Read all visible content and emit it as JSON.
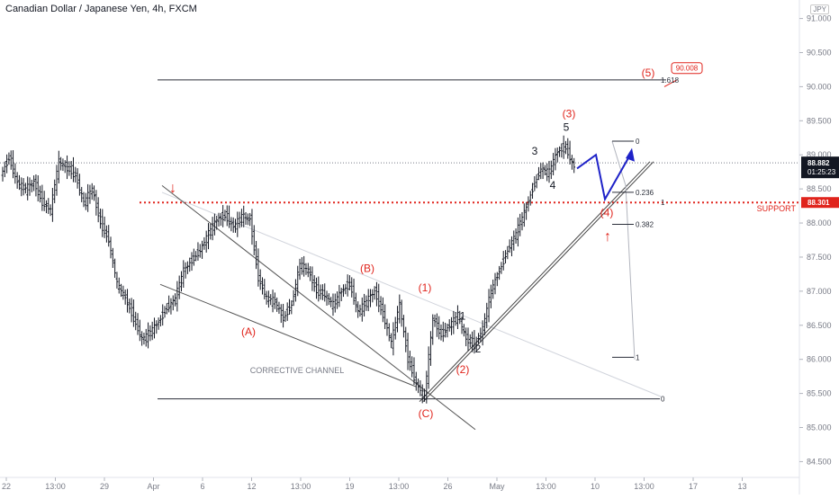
{
  "chart_data": {
    "type": "candlestick",
    "title": "Canadian Dollar / Japanese Yen, 4h, FXCM",
    "currency": "JPY",
    "ylim": [
      84.4,
      91.1
    ],
    "y_ticks": [
      "91.000",
      "90.500",
      "90.000",
      "89.500",
      "89.000",
      "88.500",
      "88.000",
      "87.500",
      "87.000",
      "86.500",
      "86.000",
      "85.500",
      "85.000",
      "84.500"
    ],
    "x_ticks": [
      "22",
      "13:00",
      "29",
      "Apr",
      "6",
      "12",
      "13:00",
      "19",
      "13:00",
      "26",
      "May",
      "13:00",
      "10",
      "13:00",
      "17",
      "13"
    ],
    "last_price": {
      "value": "88.882",
      "timer": "01:25:23",
      "color": "#131722"
    },
    "support": {
      "value": "88.301",
      "label": "SUPPORT",
      "color": "#e0241c"
    },
    "target": {
      "value": "90.008",
      "color": "#e0241c"
    },
    "ohlc_path": [
      88.7,
      88.95,
      88.6,
      88.5,
      88.6,
      88.3,
      88.2,
      88.9,
      88.8,
      88.7,
      88.3,
      88.5,
      88.0,
      87.75,
      87.1,
      86.9,
      86.6,
      86.3,
      86.4,
      86.55,
      86.75,
      86.9,
      87.3,
      87.45,
      87.6,
      87.85,
      88.05,
      88.1,
      87.95,
      88.1,
      88.05,
      87.2,
      86.9,
      86.85,
      86.6,
      86.8,
      87.4,
      87.3,
      87.0,
      86.95,
      86.8,
      87.0,
      87.1,
      86.7,
      86.85,
      87.0,
      86.65,
      86.25,
      86.8,
      86.0,
      85.65,
      85.45,
      86.6,
      86.35,
      86.5,
      86.65,
      86.3,
      86.2,
      86.45,
      87.0,
      87.3,
      87.6,
      87.85,
      88.15,
      88.5,
      88.8,
      88.75,
      89.05,
      89.1,
      88.82
    ],
    "wave_labels": [
      {
        "text": "(A)",
        "color": "#e0241c"
      },
      {
        "text": "(B)",
        "color": "#e0241c"
      },
      {
        "text": "(C)",
        "color": "#e0241c"
      },
      {
        "text": "(1)",
        "color": "#e0241c"
      },
      {
        "text": "(2)",
        "color": "#e0241c"
      },
      {
        "text": "(3)",
        "color": "#e0241c"
      },
      {
        "text": "(4)",
        "color": "#e0241c"
      },
      {
        "text": "(5)",
        "color": "#e0241c"
      },
      {
        "text": "1",
        "color": "#131722"
      },
      {
        "text": "2",
        "color": "#131722"
      },
      {
        "text": "3",
        "color": "#131722"
      },
      {
        "text": "4",
        "color": "#131722"
      },
      {
        "text": "5",
        "color": "#131722"
      }
    ],
    "annotations": {
      "corrective_channel": "CORRECTIVE CHANNEL",
      "fib_upper": [
        "0",
        "0.236",
        "0.382",
        "1"
      ],
      "fib_extension": [
        "1",
        "0",
        "1.618"
      ]
    }
  }
}
